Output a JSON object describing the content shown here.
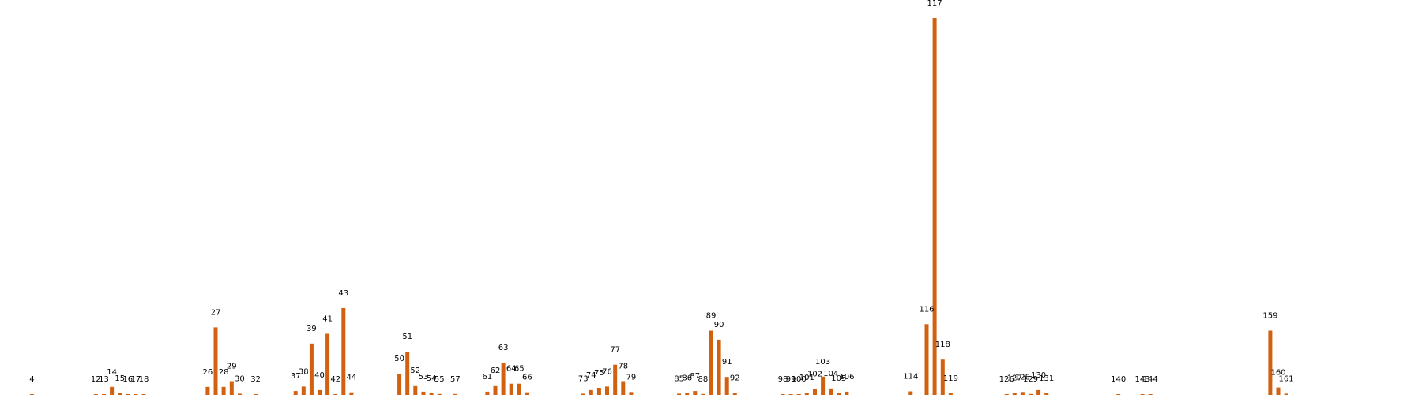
{
  "colors": {
    "bar": "#d2610f",
    "background": "#ffffff",
    "label": "#000000"
  },
  "chart_data": {
    "type": "bar",
    "title": "",
    "xlabel": "",
    "ylabel": "",
    "grid": false,
    "x_range": [
      0,
      178
    ],
    "ylim": [
      0,
      117
    ],
    "bar_labels": "category",
    "categories": [
      "4",
      "12",
      "13",
      "14",
      "15",
      "16",
      "17",
      "18",
      "26",
      "27",
      "28",
      "29",
      "30",
      "32",
      "37",
      "38",
      "39",
      "40",
      "41",
      "42",
      "43",
      "44",
      "50",
      "51",
      "52",
      "53",
      "54",
      "55",
      "57",
      "61",
      "62",
      "63",
      "64",
      "65",
      "66",
      "73",
      "74",
      "75",
      "76",
      "77",
      "78",
      "79",
      "85",
      "86",
      "87",
      "88",
      "89",
      "90",
      "91",
      "92",
      "98",
      "99",
      "100",
      "101",
      "102",
      "103",
      "104",
      "105",
      "106",
      "114",
      "116",
      "117",
      "118",
      "119",
      "126",
      "127",
      "128",
      "129",
      "130",
      "131",
      "140",
      "143",
      "144",
      "159",
      "160",
      "161"
    ],
    "values": [
      0.2,
      0.2,
      0.2,
      2.5,
      0.5,
      0.2,
      0.2,
      0.2,
      2.5,
      21,
      2.5,
      4.3,
      0.4,
      0.1,
      1.2,
      2.6,
      16,
      1.5,
      19,
      0.2,
      27,
      0.8,
      6.6,
      13.5,
      3,
      1,
      0.5,
      0.3,
      0.3,
      1,
      3,
      10,
      3.5,
      3.5,
      0.8,
      0.4,
      1.5,
      2.2,
      2.6,
      9.4,
      4.3,
      0.9,
      0.4,
      0.6,
      1.2,
      0.3,
      20,
      17.2,
      5.6,
      0.6,
      0.2,
      0.2,
      0.2,
      0.7,
      1.8,
      5.7,
      2,
      0.5,
      1,
      1.1,
      22,
      117,
      11,
      0.5,
      0.2,
      0.6,
      0.9,
      0.3,
      1.5,
      0.5,
      0.2,
      0.2,
      0.2,
      20,
      2.3,
      0.4
    ]
  }
}
